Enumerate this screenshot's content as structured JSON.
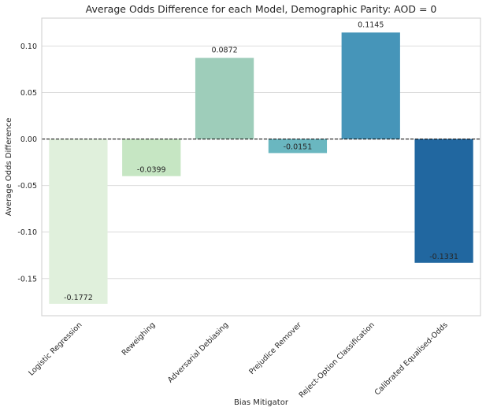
{
  "chart_data": {
    "type": "bar",
    "title": "Average Odds Difference for each Model, Demographic Parity: AOD = 0",
    "xlabel": "Bias Mitigator",
    "ylabel": "Average Odds Difference",
    "categories": [
      "Logistic Regression",
      "Reweighing",
      "Adversarial Debiasing",
      "Prejudice Remover",
      "Reject-Option Classification",
      "Calibrated Equalised-Odds"
    ],
    "values": [
      -0.1772,
      -0.0399,
      0.0872,
      -0.0151,
      0.1145,
      -0.1331
    ],
    "value_labels": [
      "-0.1772",
      "-0.0399",
      "0.0872",
      "-0.0151",
      "0.1145",
      "-0.1331"
    ],
    "colors": [
      "#e0f0dc",
      "#c6e6c3",
      "#9ecdba",
      "#6ab7c0",
      "#4695b9",
      "#2167a0"
    ],
    "ylim": [
      -0.19,
      0.13
    ],
    "yticks": [
      -0.15,
      -0.1,
      -0.05,
      0.0,
      0.05,
      0.1
    ],
    "ytick_labels": [
      "-0.15",
      "-0.10",
      "-0.05",
      "0.00",
      "0.05",
      "0.10"
    ],
    "grid": true,
    "reference_line": {
      "y": 0.0,
      "style": "dashed",
      "color": "#000000"
    }
  }
}
